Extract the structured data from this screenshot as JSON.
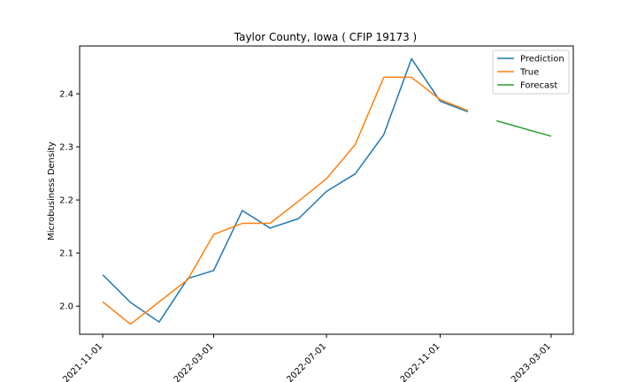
{
  "chart_data": {
    "type": "line",
    "title": "Taylor County, Iowa ( CFIP 19173 )",
    "xlabel": "",
    "ylabel": "Microbusiness Density",
    "xlim": [
      "2021-10-07",
      "2023-03-25"
    ],
    "ylim": [
      1.947,
      2.49
    ],
    "x_ticks": [
      "2021-11-01",
      "2022-03-01",
      "2022-07-01",
      "2022-11-01",
      "2023-03-01"
    ],
    "y_ticks": [
      2.0,
      2.1,
      2.2,
      2.3,
      2.4
    ],
    "legend_position": "top-right",
    "grid": false,
    "series": [
      {
        "name": "Prediction",
        "color": "#1f77b4",
        "x": [
          "2021-11-01",
          "2021-12-01",
          "2022-01-01",
          "2022-02-01",
          "2022-03-01",
          "2022-04-01",
          "2022-05-01",
          "2022-06-01",
          "2022-07-01",
          "2022-08-01",
          "2022-09-01",
          "2022-10-01",
          "2022-11-01",
          "2022-12-01"
        ],
        "values": [
          2.059,
          2.007,
          1.97,
          2.052,
          2.067,
          2.18,
          2.147,
          2.165,
          2.216,
          2.249,
          2.323,
          2.466,
          2.386,
          2.366
        ]
      },
      {
        "name": "True",
        "color": "#ff7f0e",
        "x": [
          "2021-11-01",
          "2021-12-01",
          "2022-01-01",
          "2022-02-01",
          "2022-03-01",
          "2022-04-01",
          "2022-05-01",
          "2022-06-01",
          "2022-07-01",
          "2022-08-01",
          "2022-09-01",
          "2022-10-01",
          "2022-11-01",
          "2022-12-01"
        ],
        "values": [
          2.008,
          1.966,
          2.008,
          2.05,
          2.135,
          2.156,
          2.156,
          2.198,
          2.24,
          2.304,
          2.431,
          2.431,
          2.389,
          2.368
        ]
      },
      {
        "name": "Forecast",
        "color": "#2ca02c",
        "x": [
          "2023-01-01",
          "2023-03-01"
        ],
        "values": [
          2.349,
          2.32
        ]
      }
    ]
  }
}
